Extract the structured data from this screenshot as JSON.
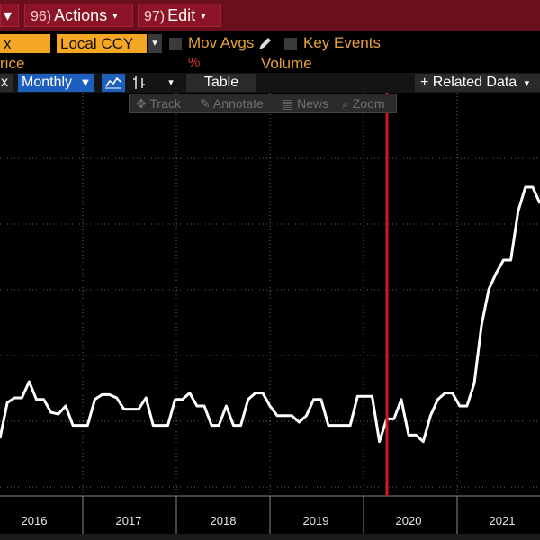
{
  "topbar": {
    "left_caret": "▾",
    "actions": {
      "num": "96)",
      "label": "Actions",
      "caret": "▾"
    },
    "edit": {
      "num": "97)",
      "label": "Edit",
      "caret": "▾"
    }
  },
  "controls": {
    "field_value": "x",
    "currency": "Local CCY",
    "currency_caret": "▾",
    "mov_avgs": "Mov Avgs",
    "key_events": "Key Events",
    "price_label": "rice",
    "pct_symbol": "%",
    "volume_label": "Volume"
  },
  "toolbar": {
    "left_stub": "x",
    "period": "Monthly",
    "period_caret": "▼",
    "chart_type_caret": "▾",
    "table": "Table",
    "related_data": "Related Data",
    "related_caret": "▾",
    "plus": "+"
  },
  "toolstrip": {
    "track": "Track",
    "annotate": "Annotate",
    "news": "News",
    "zoom": "Zoom"
  },
  "colors": {
    "accent_orange": "#f5a623",
    "label_orange": "#e7a13a",
    "brand_red": "#8b1526",
    "toggle_blue": "#1d5fbd",
    "event_line_red": "#d01a1a"
  },
  "chart_data": {
    "type": "line",
    "x_labels": [
      "2016",
      "2017",
      "2018",
      "2019",
      "2020",
      "2021"
    ],
    "grid": true,
    "event_marker": "2020",
    "series": [
      {
        "values": [
          20,
          42,
          45,
          45,
          55,
          44,
          44,
          36,
          35,
          40,
          28,
          28,
          28,
          44,
          47,
          47,
          45,
          38,
          38,
          38,
          45,
          28,
          28,
          28,
          44,
          44,
          48,
          40,
          40,
          28,
          28,
          40,
          28,
          28,
          44,
          48,
          48,
          40,
          34,
          34,
          34,
          30,
          34,
          44,
          44,
          28,
          28,
          28,
          28,
          46,
          46,
          46,
          18,
          32,
          32,
          44,
          22,
          22,
          18,
          34,
          44,
          48,
          48,
          40,
          40,
          54,
          90,
          112,
          122,
          130,
          130,
          160,
          175,
          175,
          165
        ]
      }
    ]
  }
}
